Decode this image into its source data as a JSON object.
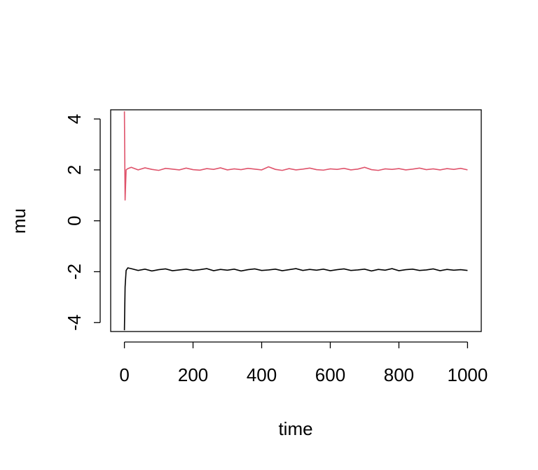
{
  "chart_data": {
    "type": "line",
    "x_label": "time",
    "y_label": "mu",
    "x": [
      0,
      2,
      5,
      10,
      20,
      40,
      60,
      80,
      100,
      120,
      140,
      160,
      180,
      200,
      220,
      240,
      260,
      280,
      300,
      320,
      340,
      360,
      380,
      400,
      420,
      440,
      460,
      480,
      500,
      520,
      540,
      560,
      580,
      600,
      620,
      640,
      660,
      680,
      700,
      720,
      740,
      760,
      780,
      800,
      820,
      840,
      860,
      880,
      900,
      920,
      940,
      960,
      980,
      1000
    ],
    "series": [
      {
        "color": "#000000",
        "values": [
          -4.3,
          -2.6,
          -1.95,
          -1.85,
          -1.88,
          -1.95,
          -1.9,
          -1.97,
          -1.92,
          -1.89,
          -1.96,
          -1.93,
          -1.9,
          -1.95,
          -1.92,
          -1.88,
          -1.96,
          -1.91,
          -1.94,
          -1.9,
          -1.97,
          -1.92,
          -1.89,
          -1.95,
          -1.93,
          -1.9,
          -1.96,
          -1.92,
          -1.88,
          -1.95,
          -1.91,
          -1.94,
          -1.9,
          -1.96,
          -1.92,
          -1.89,
          -1.95,
          -1.93,
          -1.9,
          -1.97,
          -1.91,
          -1.94,
          -1.88,
          -1.96,
          -1.92,
          -1.9,
          -1.95,
          -1.93,
          -1.89,
          -1.96,
          -1.91,
          -1.94,
          -1.92,
          -1.95
        ]
      },
      {
        "color": "#DF536B",
        "values": [
          4.3,
          0.8,
          2.0,
          2.05,
          2.1,
          2.0,
          2.08,
          2.02,
          1.98,
          2.06,
          2.03,
          2.0,
          2.07,
          2.01,
          1.99,
          2.05,
          2.02,
          2.08,
          2.0,
          2.04,
          2.01,
          2.06,
          2.03,
          2.0,
          2.12,
          2.02,
          1.98,
          2.05,
          2.0,
          2.03,
          2.07,
          2.01,
          1.99,
          2.04,
          2.02,
          2.06,
          2.0,
          2.03,
          2.1,
          2.01,
          1.98,
          2.04,
          2.02,
          2.05,
          2.0,
          2.03,
          2.07,
          2.01,
          2.04,
          2.0,
          2.05,
          2.02,
          2.06,
          2.0
        ]
      }
    ],
    "xlim": [
      -40,
      1040
    ],
    "ylim": [
      -4.35,
      4.36
    ],
    "xticks": [
      0,
      200,
      400,
      600,
      800,
      1000
    ],
    "yticks": [
      -4,
      -2,
      0,
      2,
      4
    ]
  }
}
